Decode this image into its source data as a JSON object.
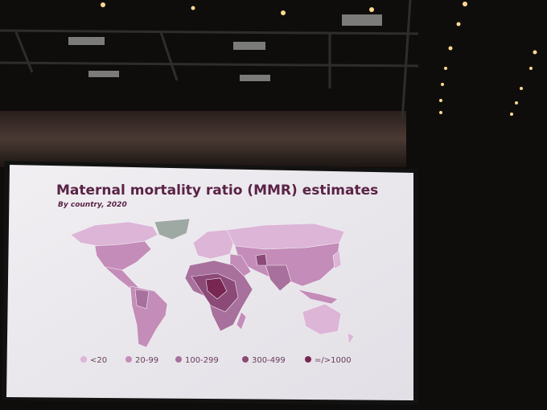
{
  "slide": {
    "title": "Maternal mortality ratio (MMR) estimates",
    "subtitle": "By country, 2020",
    "legend": [
      {
        "label": "<20",
        "color": "#dcb5d7"
      },
      {
        "label": "20-99",
        "color": "#c48cb8"
      },
      {
        "label": "100-299",
        "color": "#a8709c"
      },
      {
        "label": "300-499",
        "color": "#8c4a78"
      },
      {
        "label": "=/>1000",
        "color": "#772752"
      }
    ]
  }
}
